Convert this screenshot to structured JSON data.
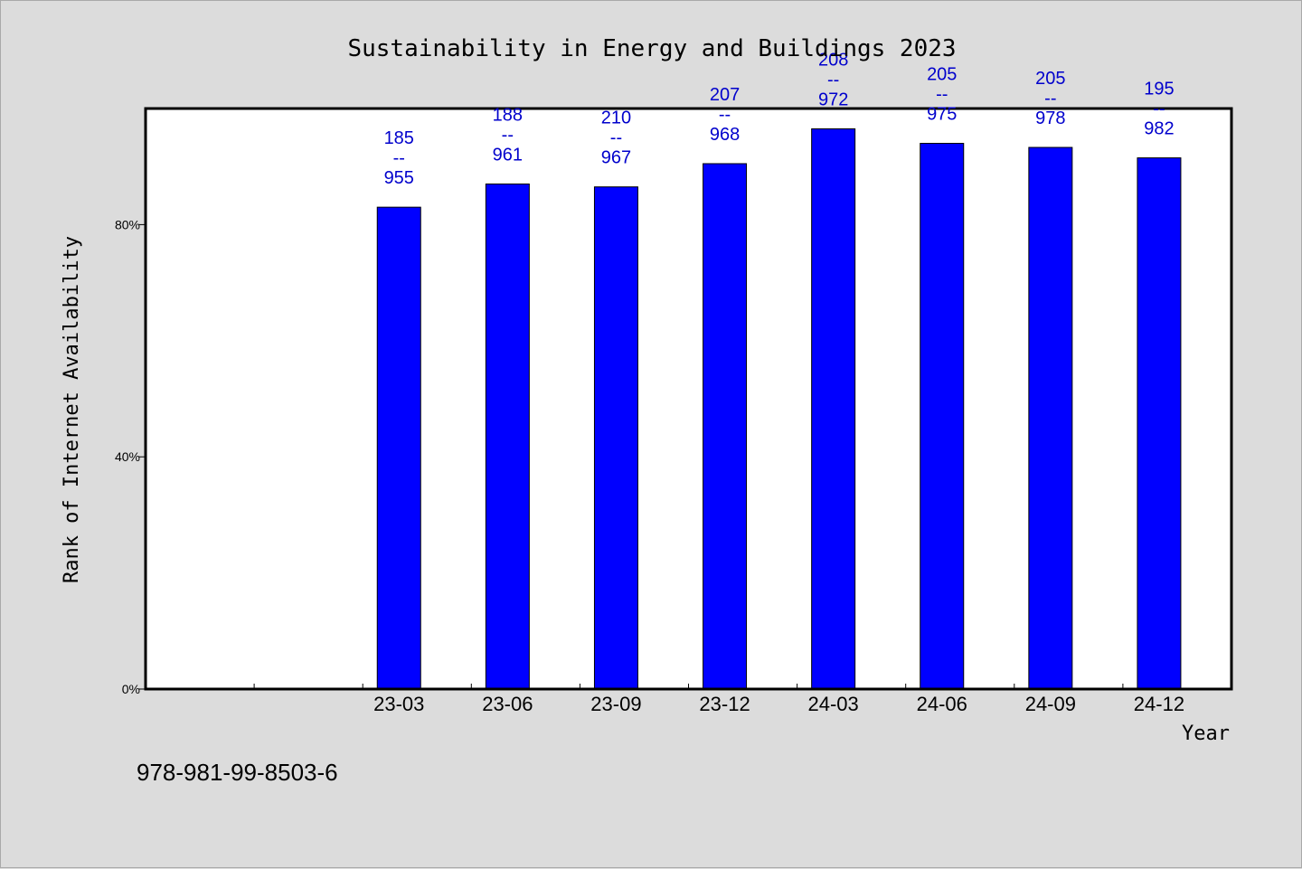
{
  "chart_data": {
    "type": "bar",
    "title": "Sustainability in Energy and Buildings 2023",
    "xlabel": "Year",
    "ylabel": "Rank of Internet Availability",
    "categories": [
      "",
      "",
      "23-03",
      "23-06",
      "23-09",
      "23-12",
      "24-03",
      "24-06",
      "24-09",
      "24-12"
    ],
    "values": [
      null,
      null,
      83,
      87,
      86.5,
      90.5,
      96.5,
      94,
      93.3,
      91.5
    ],
    "bar_labels": [
      null,
      null,
      [
        "185",
        "--",
        "955"
      ],
      [
        "188",
        "--",
        "961"
      ],
      [
        "210",
        "--",
        "967"
      ],
      [
        "207",
        "--",
        "968"
      ],
      [
        "208",
        "--",
        "972"
      ],
      [
        "205",
        "--",
        "975"
      ],
      [
        "205",
        "--",
        "978"
      ],
      [
        "195",
        "--",
        "982"
      ]
    ],
    "ylim": [
      0,
      100
    ],
    "yticks": [
      0,
      40,
      80
    ],
    "ytick_labels": [
      "0%",
      "40%",
      "80%"
    ],
    "grid": false,
    "legend": "none",
    "bar_color": "#0000ff",
    "label_color": "#0000cc",
    "footnote": "978-981-99-8503-6"
  }
}
